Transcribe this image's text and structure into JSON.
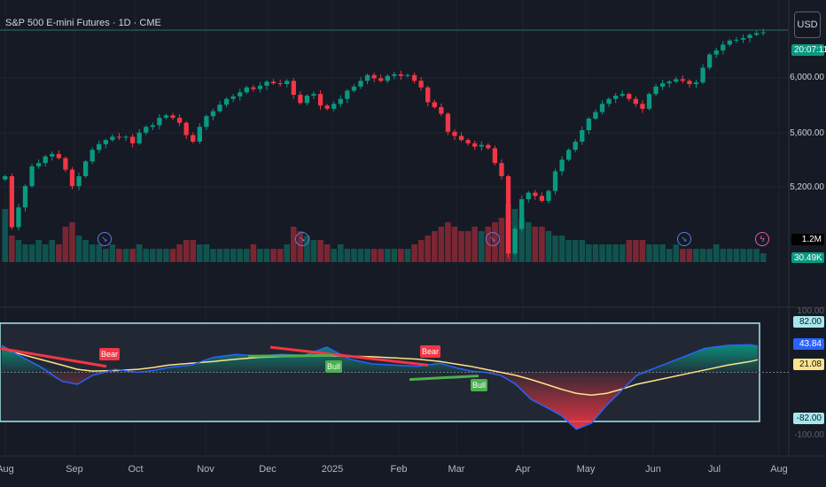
{
  "header": {
    "title": "S&P 500 E-mini Futures · 1D · CME",
    "currency_label": "USD"
  },
  "price_axis": {
    "ticks": [
      "6,000.00",
      "5,600.00",
      "5,200.00"
    ],
    "last_price_label": "20:07:11"
  },
  "volume_axis": {
    "value_label": "1.2M",
    "ma_label": "30.49K"
  },
  "oscillator_axis": {
    "upper_level": "82.00",
    "oscillator_value": "43.84",
    "signal_value": "21.08",
    "lower_level": "-82.00",
    "upper_bound_label": "100.00",
    "lower_bound_label": "-100.00"
  },
  "x_axis": {
    "labels": [
      "Aug",
      "Sep",
      "Oct",
      "Nov",
      "Dec",
      "2025",
      "Feb",
      "Mar",
      "Apr",
      "May",
      "Jun",
      "Jul",
      "Aug"
    ]
  },
  "divergence_labels": {
    "bear_1": "Bear",
    "bull_1": "Bull",
    "bear_2": "Bear",
    "bull_2": "Bull"
  },
  "icons": {
    "earnings": "arrow-in-circle-icon",
    "flash": "lightning-icon"
  },
  "colors": {
    "up": "#089981",
    "down": "#f23645",
    "oscillator": "#2962ff",
    "signal": "#ffe38a",
    "level": "#a5e8ec",
    "background": "#161a25"
  },
  "chart_data": [
    {
      "type": "candlestick",
      "title": "S&P 500 E-mini Futures · 1D · CME",
      "y_ticks": [
        5200,
        5600,
        6000
      ],
      "ylim": [
        5030,
        6430
      ],
      "x_range": [
        "2024-08-01",
        "2025-07-24"
      ],
      "close": [
        5520,
        5210,
        5330,
        5460,
        5580,
        5600,
        5640,
        5655,
        5630,
        5560,
        5460,
        5520,
        5610,
        5680,
        5715,
        5740,
        5760,
        5755,
        5760,
        5720,
        5785,
        5820,
        5830,
        5875,
        5890,
        5875,
        5845,
        5770,
        5730,
        5820,
        5885,
        5915,
        5955,
        5990,
        6005,
        6030,
        6060,
        6050,
        6070,
        6095,
        6085,
        6080,
        6100,
        6015,
        5965,
        6010,
        6020,
        5950,
        5930,
        5960,
        5990,
        6040,
        6065,
        6100,
        6135,
        6115,
        6100,
        6130,
        6140,
        6130,
        6135,
        6100,
        6060,
        5970,
        5940,
        5900,
        5790,
        5765,
        5740,
        5720,
        5700,
        5710,
        5690,
        5600,
        5520,
        5050,
        5200,
        5380,
        5420,
        5400,
        5370,
        5430,
        5550,
        5620,
        5680,
        5730,
        5800,
        5870,
        5910,
        5960,
        5990,
        6010,
        6020,
        5990,
        5960,
        5930,
        6020,
        6065,
        6085,
        6095,
        6110,
        6100,
        6080,
        6090,
        6180,
        6260,
        6285,
        6320,
        6345,
        6350,
        6360,
        6380,
        6390,
        6395
      ]
    },
    {
      "type": "bar",
      "name": "Volume",
      "values": [
        1.2,
        0.6,
        0.5,
        0.4,
        0.4,
        0.5,
        0.4,
        0.5,
        0.4,
        0.8,
        0.9,
        0.6,
        0.5,
        0.4,
        0.4,
        0.3,
        0.4,
        0.3,
        0.3,
        0.3,
        0.4,
        0.3,
        0.3,
        0.3,
        0.3,
        0.3,
        0.4,
        0.5,
        0.5,
        0.4,
        0.4,
        0.3,
        0.3,
        0.3,
        0.3,
        0.3,
        0.3,
        0.4,
        0.3,
        0.3,
        0.3,
        0.3,
        0.4,
        0.8,
        0.7,
        0.6,
        0.5,
        0.5,
        0.4,
        0.3,
        0.4,
        0.3,
        0.3,
        0.3,
        0.3,
        0.3,
        0.3,
        0.3,
        0.3,
        0.3,
        0.3,
        0.4,
        0.5,
        0.6,
        0.7,
        0.8,
        0.9,
        0.8,
        0.7,
        0.7,
        0.8,
        0.7,
        0.8,
        0.9,
        1.0,
        1.3,
        1.2,
        1.0,
        0.9,
        0.8,
        0.8,
        0.7,
        0.6,
        0.6,
        0.5,
        0.5,
        0.5,
        0.4,
        0.4,
        0.4,
        0.4,
        0.4,
        0.4,
        0.5,
        0.5,
        0.5,
        0.4,
        0.4,
        0.4,
        0.3,
        0.4,
        0.3,
        0.3,
        0.3,
        0.3,
        0.3,
        0.4,
        0.3,
        0.3,
        0.3,
        0.3,
        0.3,
        0.3,
        0.2
      ]
    },
    {
      "type": "line",
      "name": "Oscillator",
      "ylim": [
        -100,
        100
      ],
      "levels": [
        82,
        0,
        -82
      ],
      "x": [
        0,
        0.02,
        0.05,
        0.08,
        0.1,
        0.12,
        0.15,
        0.18,
        0.2,
        0.22,
        0.25,
        0.28,
        0.31,
        0.34,
        0.37,
        0.4,
        0.43,
        0.46,
        0.49,
        0.52,
        0.55,
        0.58,
        0.6,
        0.62,
        0.64,
        0.66,
        0.68,
        0.7,
        0.72,
        0.74,
        0.76,
        0.78,
        0.8,
        0.82,
        0.84,
        0.87,
        0.9,
        0.93,
        0.96,
        0.99,
        1.0
      ],
      "oscillator": [
        45,
        30,
        10,
        -15,
        -20,
        -5,
        5,
        0,
        3,
        8,
        12,
        25,
        30,
        27,
        30,
        28,
        42,
        22,
        14,
        12,
        10,
        15,
        8,
        2,
        0,
        -5,
        -20,
        -45,
        -58,
        -72,
        -95,
        -85,
        -55,
        -30,
        -5,
        10,
        25,
        40,
        45,
        46,
        44
      ],
      "signal": [
        40,
        32,
        22,
        12,
        5,
        2,
        3,
        5,
        8,
        12,
        15,
        18,
        22,
        25,
        26,
        27,
        28,
        27,
        26,
        24,
        22,
        18,
        14,
        10,
        5,
        0,
        -5,
        -12,
        -20,
        -28,
        -35,
        -38,
        -35,
        -28,
        -20,
        -12,
        -4,
        4,
        12,
        18,
        21
      ]
    }
  ]
}
